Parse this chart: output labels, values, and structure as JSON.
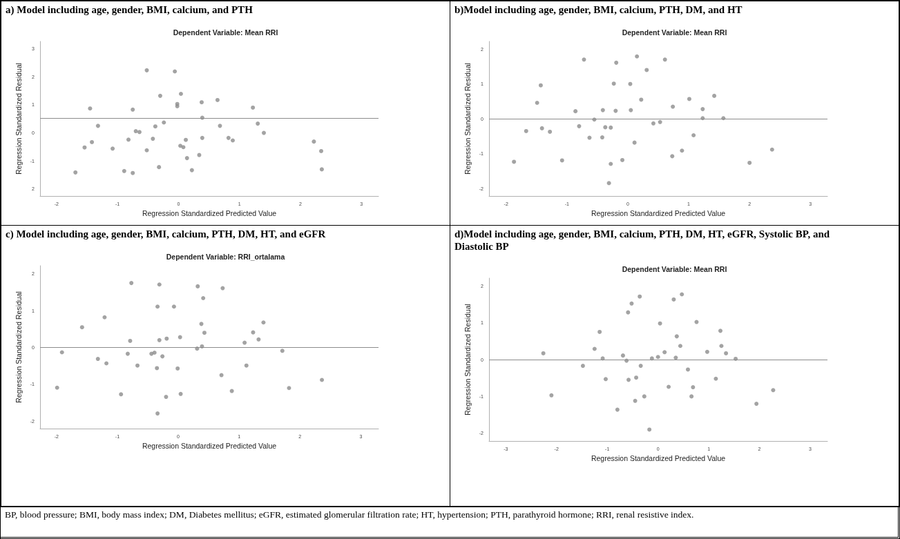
{
  "chart_data": [
    {
      "type": "scatter",
      "title": "a) Model including age, gender, BMI, calcium, and PTH",
      "subtitle": "Dependent Variable: Mean RRI",
      "xlabel": "Regression Standardized Predicted Value",
      "ylabel": "Regression Standardized Residual",
      "marker": "circle",
      "color": "#8c8c8c",
      "x": [
        -0.52,
        -0.06,
        -0.3,
        0.04,
        0.38,
        0.64,
        -0.02,
        -0.02,
        -1.45,
        -0.75,
        1.22,
        0.39,
        -1.32,
        -0.24,
        -0.38,
        0.68,
        1.3,
        -0.7,
        -0.64,
        1.4,
        -1.42,
        -0.82,
        -0.42,
        0.12,
        0.39,
        0.82,
        0.89,
        2.22,
        -1.54,
        -1.08,
        -0.52,
        0.03,
        0.08,
        2.34,
        0.34,
        0.14,
        -0.32,
        0.22,
        -0.89,
        -0.75,
        -1.69,
        2.35
      ],
      "values": [
        2.23,
        2.19,
        1.32,
        1.39,
        1.09,
        1.17,
        1.03,
        0.95,
        0.87,
        0.83,
        0.9,
        0.54,
        0.25,
        0.37,
        0.23,
        0.25,
        0.33,
        0.06,
        0.03,
        0.0,
        -0.33,
        -0.24,
        -0.21,
        -0.25,
        -0.18,
        -0.18,
        -0.27,
        -0.31,
        -0.52,
        -0.56,
        -0.62,
        -0.46,
        -0.51,
        -0.65,
        -0.79,
        -0.9,
        -1.22,
        -1.33,
        -1.36,
        -1.43,
        -1.41,
        -1.3
      ],
      "xlim": [
        -2.27,
        3.28
      ],
      "ylim": [
        -2.25,
        3.26
      ],
      "xticks": [
        -2,
        -1,
        0,
        1,
        2,
        3
      ],
      "yticks": [
        {
          "value": -2,
          "label": "2"
        },
        -1,
        0,
        1,
        2,
        3
      ],
      "ref_lines": [
        {
          "axis": "y",
          "value": 0.53,
          "color": "#8c8c8c"
        }
      ]
    },
    {
      "type": "scatter",
      "title": "b)Model including age, gender, BMI, calcium, PTH, DM, and HT",
      "subtitle": "Dependent Variable: Mean RRI",
      "xlabel": "Regression Standardized Predicted Value",
      "ylabel": "Regression Standardized Residual",
      "marker": "circle",
      "color": "#8c8c8c",
      "x": [
        -0.72,
        0.15,
        0.61,
        -0.19,
        0.31,
        -1.43,
        -0.23,
        0.04,
        -1.49,
        1.42,
        1.01,
        0.22,
        -0.86,
        -0.41,
        -0.2,
        0.05,
        0.74,
        1.23,
        1.23,
        1.57,
        -0.55,
        -0.8,
        -0.37,
        -0.28,
        0.42,
        0.53,
        -1.67,
        -1.41,
        -1.28,
        -0.63,
        -0.42,
        0.11,
        1.08,
        -1.87,
        -1.08,
        -0.28,
        -0.09,
        0.73,
        0.89,
        2.0,
        2.37,
        -0.31
      ],
      "values": [
        1.7,
        1.79,
        1.7,
        1.61,
        1.4,
        0.96,
        1.01,
        1.0,
        0.46,
        0.66,
        0.57,
        0.55,
        0.22,
        0.25,
        0.23,
        0.25,
        0.35,
        0.28,
        0.02,
        0.02,
        -0.02,
        -0.21,
        -0.24,
        -0.25,
        -0.13,
        -0.09,
        -0.35,
        -0.27,
        -0.37,
        -0.54,
        -0.53,
        -0.68,
        -0.47,
        -1.23,
        -1.19,
        -1.29,
        -1.18,
        -1.07,
        -0.91,
        -1.26,
        -0.88,
        -1.84
      ],
      "xlim": [
        -2.28,
        3.28
      ],
      "ylim": [
        -2.21,
        2.22
      ],
      "xticks": [
        -2,
        -1,
        0,
        1,
        2,
        3
      ],
      "yticks": [
        -2,
        -1,
        0,
        1,
        2
      ],
      "ref_lines": [
        {
          "axis": "y",
          "value": 0,
          "color": "#8c8c8c"
        }
      ]
    },
    {
      "type": "scatter",
      "title": "c) Model including age, gender, BMI, calcium, PTH, DM, HT, and eGFR",
      "subtitle": "Dependent Variable: RRI_ortalama",
      "xlabel": "Regression Standardized Predicted Value",
      "ylabel": "Regression Standardized Residual",
      "marker": "circle",
      "color": "#8c8c8c",
      "x": [
        -0.77,
        -0.31,
        0.32,
        0.73,
        0.41,
        -0.34,
        -0.07,
        -1.21,
        -1.58,
        0.38,
        1.4,
        0.43,
        1.23,
        -0.79,
        -0.31,
        -0.19,
        0.03,
        1.09,
        1.32,
        0.39,
        0.31,
        -1.91,
        -1.32,
        -1.18,
        -0.83,
        -0.44,
        -0.39,
        -0.26,
        -0.67,
        -0.35,
        -0.01,
        1.12,
        1.71,
        0.71,
        -1.99,
        -0.94,
        -0.2,
        0.04,
        0.88,
        1.82,
        2.36,
        -0.34
      ],
      "values": [
        1.75,
        1.71,
        1.66,
        1.61,
        1.34,
        1.11,
        1.11,
        0.82,
        0.55,
        0.64,
        0.68,
        0.4,
        0.41,
        0.18,
        0.2,
        0.24,
        0.28,
        0.13,
        0.22,
        0.03,
        -0.03,
        -0.13,
        -0.31,
        -0.43,
        -0.17,
        -0.17,
        -0.14,
        -0.24,
        -0.49,
        -0.56,
        -0.57,
        -0.49,
        -0.09,
        -0.75,
        -1.09,
        -1.27,
        -1.34,
        -1.26,
        -1.18,
        -1.1,
        -0.88,
        -1.79
      ],
      "xlim": [
        -2.27,
        3.29
      ],
      "ylim": [
        -2.2,
        2.22
      ],
      "xticks": [
        -2,
        -1,
        0,
        1,
        2,
        3
      ],
      "yticks": [
        -2,
        -1,
        0,
        1,
        2
      ],
      "ref_lines": [
        {
          "axis": "y",
          "value": 0,
          "color": "#8c8c8c"
        }
      ]
    },
    {
      "type": "scatter",
      "title": "d)Model including age, gender, BMI, calcium, PTH, DM, HT, eGFR, Systolic BP, and  Diastolic BP",
      "subtitle": "Dependent Variable: Mean RRI",
      "xlabel": "Regression Standardized Predicted Value",
      "ylabel": "Regression Standardized Residual",
      "marker": "circle",
      "color": "#8c8c8c",
      "x": [
        0.47,
        -0.36,
        0.31,
        -0.52,
        -0.59,
        0.04,
        0.76,
        -1.15,
        1.23,
        0.37,
        -1.25,
        0.44,
        1.25,
        -2.26,
        -0.69,
        0.13,
        0.97,
        1.34,
        -1.09,
        -0.12,
        0.0,
        0.35,
        1.53,
        -0.62,
        -1.48,
        -0.34,
        0.59,
        -1.03,
        -0.58,
        -0.43,
        1.14,
        0.21,
        0.69,
        -2.1,
        -0.27,
        0.66,
        -0.45,
        2.27,
        -0.8,
        1.94,
        -0.17
      ],
      "values": [
        1.77,
        1.71,
        1.63,
        1.52,
        1.28,
        0.98,
        1.02,
        0.75,
        0.78,
        0.63,
        0.29,
        0.37,
        0.37,
        0.17,
        0.11,
        0.2,
        0.21,
        0.17,
        0.03,
        0.03,
        0.07,
        0.05,
        0.02,
        -0.03,
        -0.17,
        -0.17,
        -0.27,
        -0.53,
        -0.55,
        -0.49,
        -0.52,
        -0.74,
        -0.75,
        -0.97,
        -1.0,
        -1.0,
        -1.12,
        -0.83,
        -1.36,
        -1.2,
        -1.9
      ],
      "xlim": [
        -3.33,
        3.34
      ],
      "ylim": [
        -2.21,
        2.21
      ],
      "xticks": [
        -3,
        -2,
        -1,
        0,
        1,
        2,
        3
      ],
      "yticks": [
        -2,
        -1,
        0,
        1,
        2
      ],
      "ref_lines": [
        {
          "axis": "y",
          "value": 0,
          "color": "#8c8c8c"
        }
      ],
      "annotations": [
        "BP, blood pressure; BMI, body mass index; DM, Diabetes mellitus; eGFR, estimated glomerular filtration rate; HT, hypertension; PTH, parathyroid hormone; RRI, renal resistive index."
      ]
    }
  ]
}
